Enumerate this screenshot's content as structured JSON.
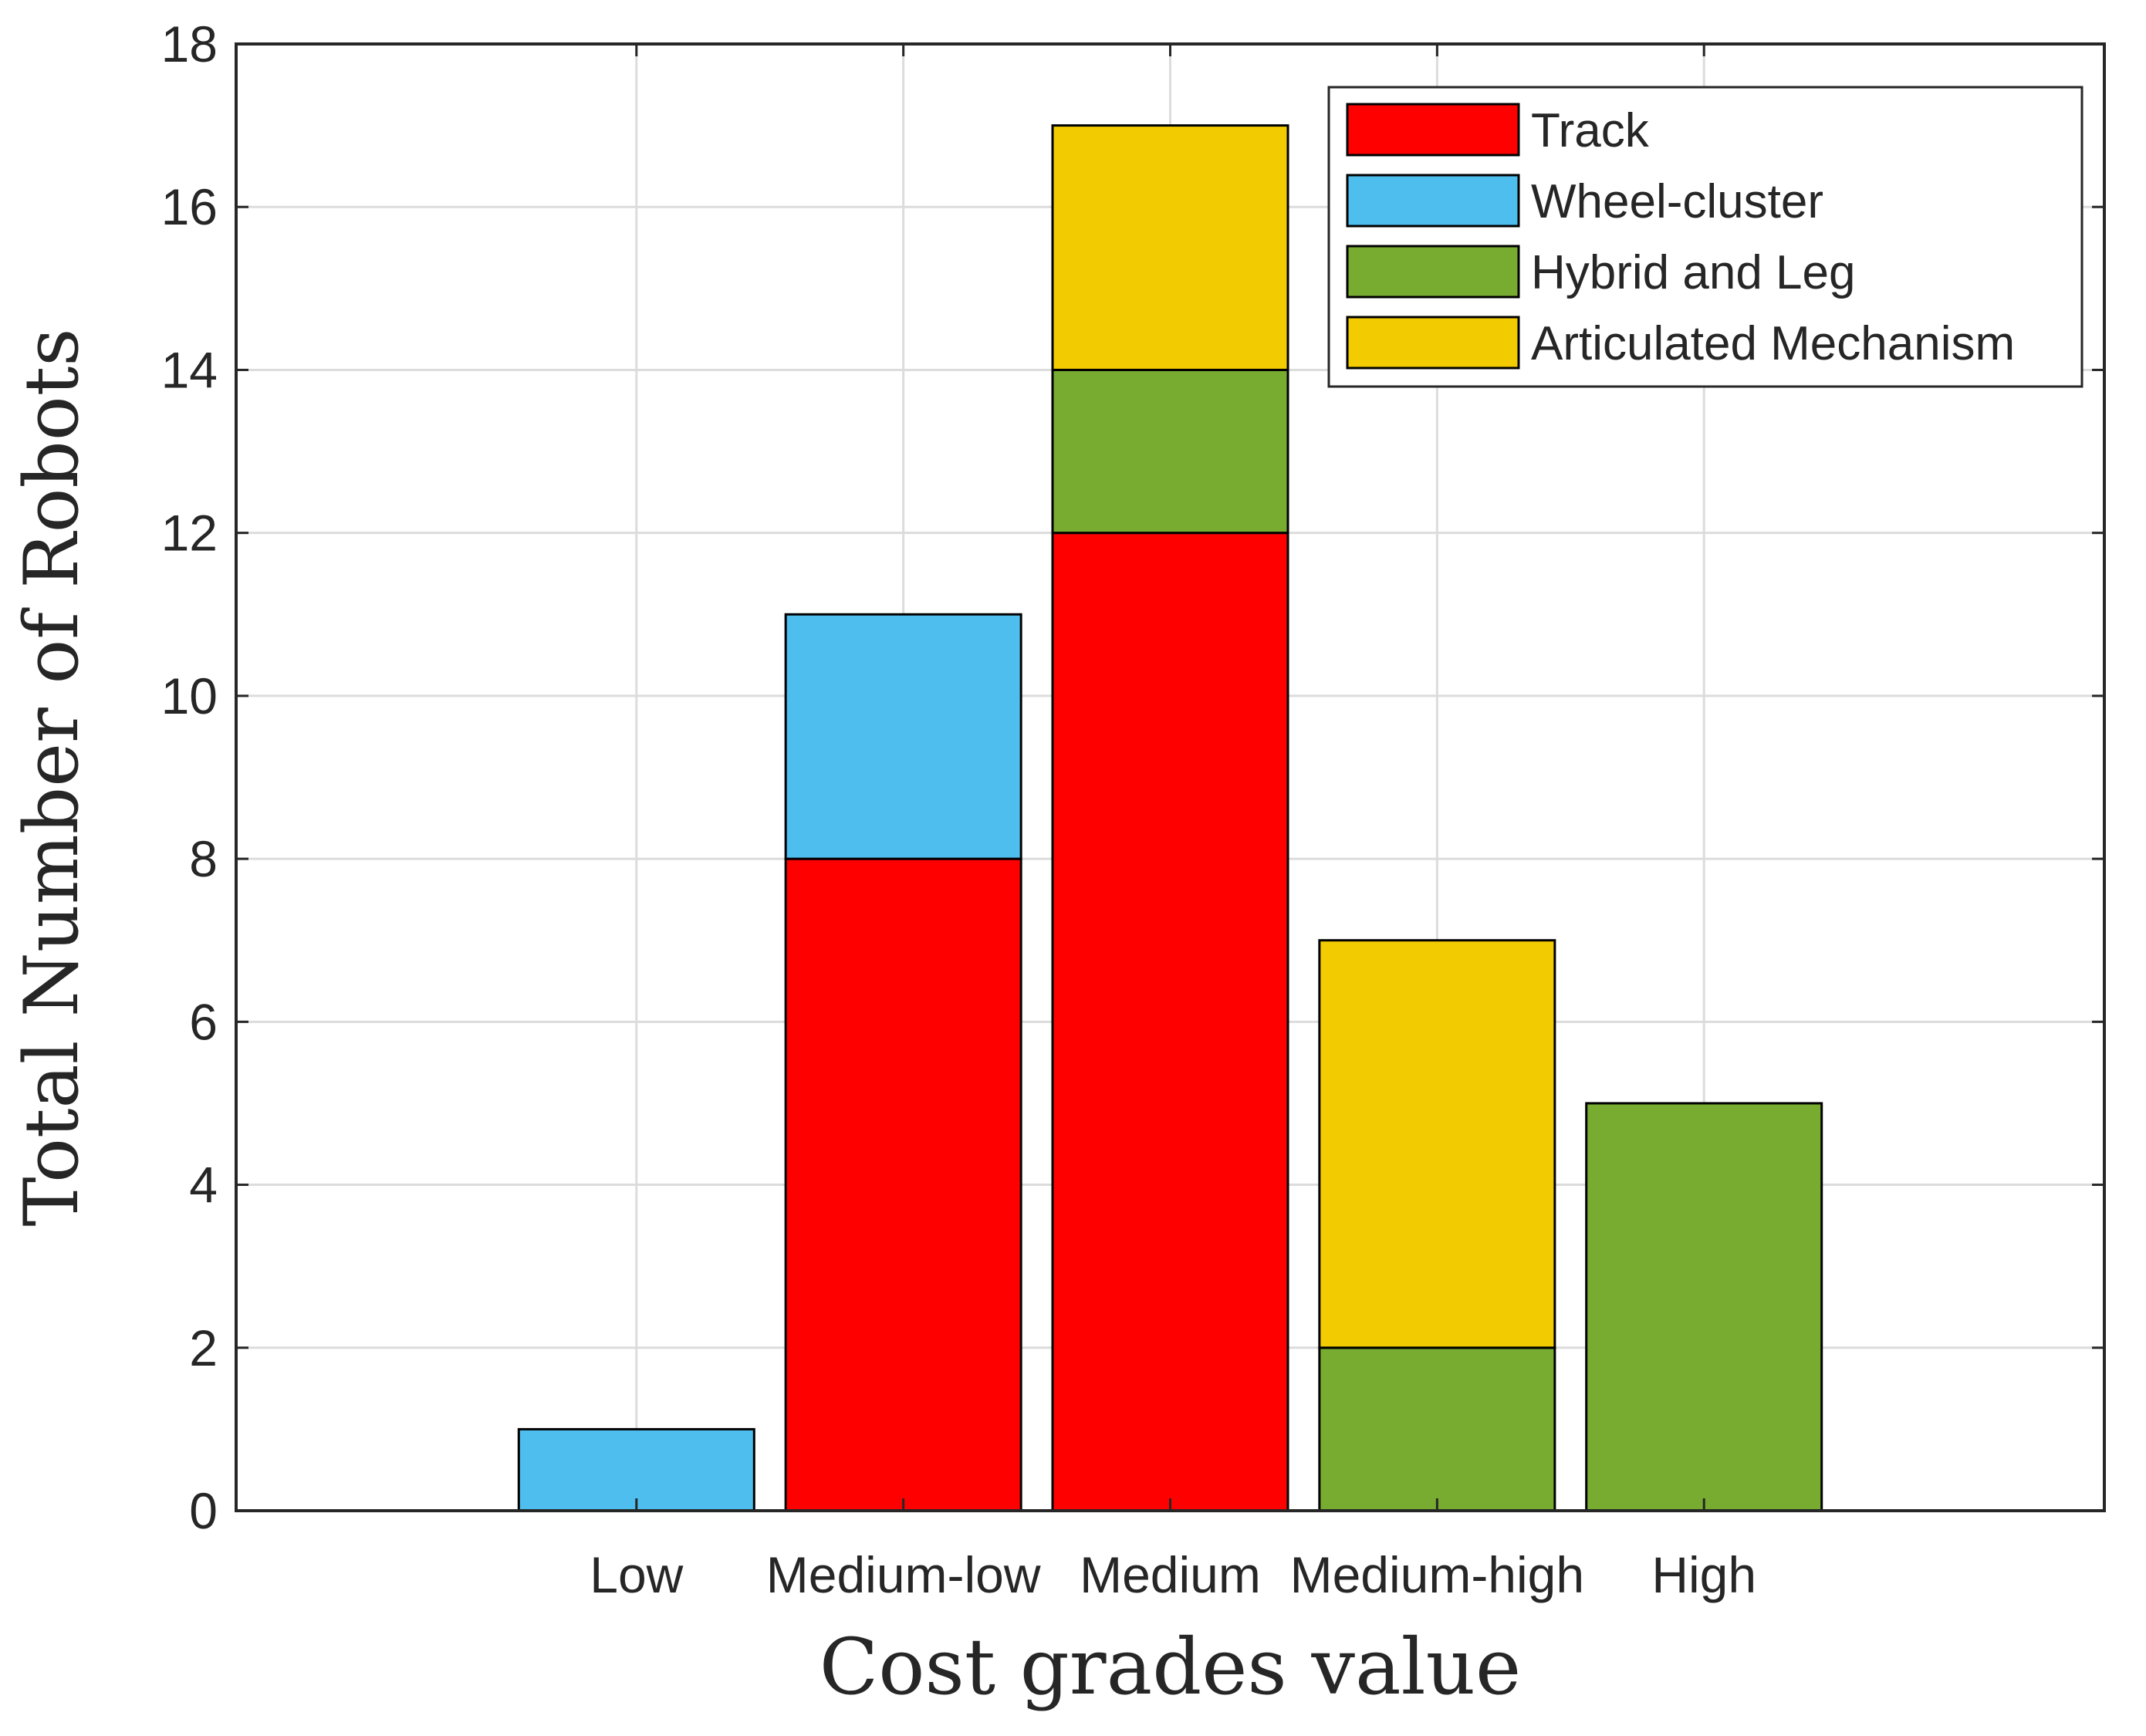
{
  "chart_data": {
    "type": "bar",
    "stacked": true,
    "title": "",
    "xlabel": "Cost grades value",
    "ylabel": "Total Number of Robots",
    "categories": [
      "Low",
      "Medium-low",
      "Medium",
      "Medium-high",
      "High"
    ],
    "ylim": [
      0,
      18
    ],
    "yticks": [
      0,
      2,
      4,
      6,
      8,
      10,
      12,
      14,
      16,
      18
    ],
    "grid": true,
    "legend_position": "top-right",
    "series": [
      {
        "name": "Track",
        "color": "#ff0000",
        "values": [
          0,
          8,
          12,
          0,
          0
        ]
      },
      {
        "name": "Wheel-cluster",
        "color": "#4dbeee",
        "values": [
          1,
          3,
          0,
          0,
          0
        ]
      },
      {
        "name": "Hybrid and Leg",
        "color": "#77ac30",
        "values": [
          0,
          0,
          2,
          2,
          5
        ]
      },
      {
        "name": "Articulated Mechanism",
        "color": "#f2cc00",
        "values": [
          0,
          0,
          3,
          5,
          0
        ]
      }
    ]
  }
}
